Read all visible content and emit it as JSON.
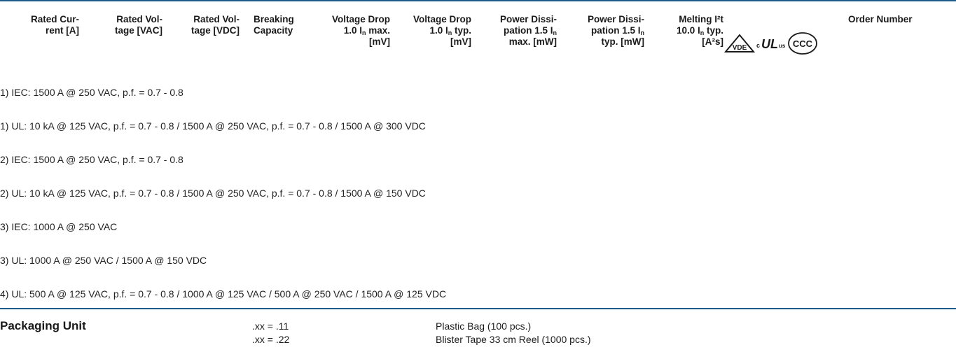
{
  "header": {
    "rated_current": [
      "Rated Cur-",
      "rent [A]"
    ],
    "rated_voltage_vac": [
      "Rated Vol-",
      "tage [VAC]"
    ],
    "rated_voltage_vdc": [
      "Rated Vol-",
      "tage [VDC]"
    ],
    "breaking_capacity": [
      "Breaking",
      "Capacity"
    ],
    "voltage_drop_max": {
      "line1": "Voltage Drop",
      "l2_pre": "1.0 I",
      "l2_sub": "n",
      "l2_post": " max.",
      "line3": "[mV]"
    },
    "voltage_drop_typ": {
      "line1": "Voltage Drop",
      "l2_pre": "1.0 I",
      "l2_sub": "n",
      "l2_post": " typ.",
      "line3": "[mV]"
    },
    "power_diss_max": {
      "line1": "Power Dissi-",
      "l2_pre": "pation 1.5 I",
      "l2_sub": "n",
      "line3": "max. [mW]"
    },
    "power_diss_typ": {
      "line1": "Power Dissi-",
      "l2_pre": "pation 1.5 I",
      "l2_sub": "n",
      "line3": "typ. [mW]"
    },
    "melting": {
      "line1": "Melting I²t",
      "l2_pre": "10.0 I",
      "l2_sub": "n",
      "l2_post": " typ.",
      "line3": "[A²s]"
    },
    "order_number": "Order Number",
    "logos": {
      "vde": "VDE",
      "ul_c": "c",
      "ul_mark": "UL",
      "ul_us": "us",
      "ccc": "CCC"
    }
  },
  "notes": [
    "1) IEC: 1500 A @ 250 VAC, p.f. = 0.7 - 0.8",
    "1) UL: 10 kA @ 125 VAC, p.f. = 0.7 - 0.8 / 1500 A @ 250 VAC, p.f. = 0.7 - 0.8 / 1500 A @ 300 VDC",
    "2) IEC: 1500 A @ 250 VAC, p.f. = 0.7 - 0.8",
    "2) UL: 10 kA @ 125 VAC, p.f. = 0.7 - 0.8 / 1500 A @ 250 VAC, p.f. = 0.7 - 0.8 / 1500 A @ 150 VDC",
    "3) IEC: 1000 A @ 250 VAC",
    "3) UL: 1000 A @ 250 VAC / 1500 A @ 150 VDC",
    "4) UL: 500 A @ 125 VAC, p.f. = 0.7 - 0.8 / 1000 A @ 125 VAC / 500 A @ 250 VAC / 1500 A @ 125 VDC"
  ],
  "packaging": {
    "title": "Packaging Unit",
    "rows": [
      {
        "code": ".xx = .11",
        "description": "Plastic Bag (100 pcs.)"
      },
      {
        "code": ".xx = .22",
        "description": "Blister Tape 33 cm Reel (1000 pcs.)"
      }
    ]
  },
  "colors": {
    "rule": "#1c5c8c",
    "text": "#1a1a1a"
  }
}
